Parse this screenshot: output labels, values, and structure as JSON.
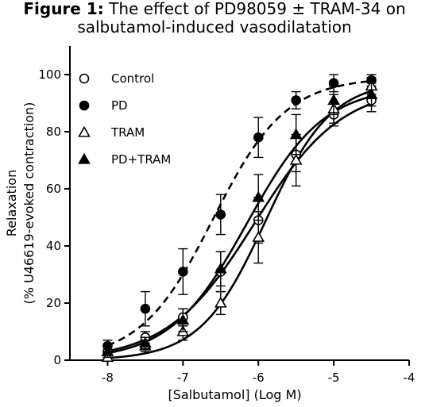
{
  "title": {
    "lead": "Figure 1:",
    "line1": " The effect of PD98059 ± TRAM-34 on",
    "line2": "salbutamol-induced vasodilatation"
  },
  "chart_data": {
    "type": "scatter",
    "xlabel": "[Salbutamol] (Log M)",
    "ylabel_line1": "Relaxation",
    "ylabel_line2": "(% U46619-evoked contraction)",
    "xlim": [
      -8.5,
      -4
    ],
    "ylim": [
      0,
      110
    ],
    "xticks": [
      -8,
      -7,
      -6,
      -5,
      -4
    ],
    "yticks": [
      0,
      20,
      40,
      60,
      80,
      100
    ],
    "legend_position": "top-left",
    "series": [
      {
        "name": "Control",
        "marker": "open-circle",
        "line_style": "solid",
        "x": [
          -8,
          -7.5,
          -7,
          -6.5,
          -6,
          -5.5,
          -5,
          -4.5
        ],
        "y": [
          3,
          8,
          15,
          31,
          49,
          72,
          86,
          91
        ],
        "err": [
          2,
          2,
          3,
          7,
          8,
          6,
          4,
          4
        ],
        "fit": {
          "bottom": 0,
          "top": 96,
          "logEC50": -6.05,
          "hill": 0.75
        }
      },
      {
        "name": "PD",
        "marker": "filled-circle",
        "line_style": "dashed",
        "x": [
          -8,
          -7.5,
          -7,
          -6.5,
          -6,
          -5.5,
          -5,
          -4.5
        ],
        "y": [
          5,
          18,
          31,
          51,
          78,
          91,
          97,
          98
        ],
        "err": [
          2,
          6,
          8,
          7,
          7,
          3,
          3,
          2
        ],
        "fit": {
          "bottom": 0,
          "top": 99,
          "logEC50": -6.6,
          "hill": 0.9
        }
      },
      {
        "name": "TRAM",
        "marker": "open-triangle",
        "line_style": "solid",
        "x": [
          -8,
          -7.5,
          -7,
          -6.5,
          -6,
          -5.5,
          -5,
          -4.5
        ],
        "y": [
          1,
          5,
          10,
          20,
          43,
          70,
          88,
          96
        ],
        "err": [
          1,
          2,
          3,
          4,
          9,
          9,
          5,
          3
        ],
        "fit": {
          "bottom": 0,
          "top": 98,
          "logEC50": -5.9,
          "hill": 1.0
        }
      },
      {
        "name": "PD+TRAM",
        "marker": "filled-triangle",
        "line_style": "solid",
        "x": [
          -8,
          -7.5,
          -7,
          -6.5,
          -6,
          -5.5,
          -5,
          -4.5
        ],
        "y": [
          3,
          6,
          14,
          32,
          57,
          79,
          91,
          93
        ],
        "err": [
          2,
          2,
          4,
          6,
          8,
          7,
          5,
          4
        ],
        "fit": {
          "bottom": 0,
          "top": 96,
          "logEC50": -6.15,
          "hill": 0.85
        }
      }
    ]
  }
}
